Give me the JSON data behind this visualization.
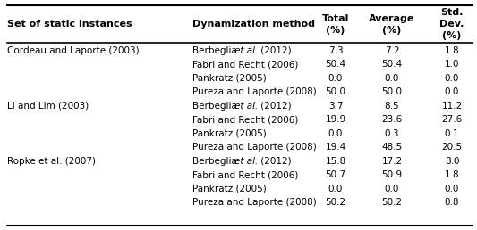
{
  "col_headers": [
    [
      "Set of static instances"
    ],
    [
      "Dynamization method"
    ],
    [
      "Total",
      "(%)"
    ],
    [
      "Average",
      "(%)"
    ],
    [
      "Std.",
      "Dev.",
      "(%)"
    ]
  ],
  "groups": [
    {
      "group_label": "Cordeau and Laporte (2003)",
      "rows": [
        {
          "method_pre": "Berbeglia ",
          "method_italic": "et al.",
          "method_post": " (2012)",
          "total": "7.3",
          "average": "7.2",
          "std": "1.8"
        },
        {
          "method_pre": "Fabri and Recht (2006)",
          "method_italic": "",
          "method_post": "",
          "total": "50.4",
          "average": "50.4",
          "std": "1.0"
        },
        {
          "method_pre": "Pankratz (2005)",
          "method_italic": "",
          "method_post": "",
          "total": "0.0",
          "average": "0.0",
          "std": "0.0"
        },
        {
          "method_pre": "Pureza and Laporte (2008)",
          "method_italic": "",
          "method_post": "",
          "total": "50.0",
          "average": "50.0",
          "std": "0.0"
        }
      ]
    },
    {
      "group_label": "Li and Lim (2003)",
      "rows": [
        {
          "method_pre": "Berbeglia ",
          "method_italic": "et al.",
          "method_post": " (2012)",
          "total": "3.7",
          "average": "8.5",
          "std": "11.2"
        },
        {
          "method_pre": "Fabri and Recht (2006)",
          "method_italic": "",
          "method_post": "",
          "total": "19.9",
          "average": "23.6",
          "std": "27.6"
        },
        {
          "method_pre": "Pankratz (2005)",
          "method_italic": "",
          "method_post": "",
          "total": "0.0",
          "average": "0.3",
          "std": "0.1"
        },
        {
          "method_pre": "Pureza and Laporte (2008)",
          "method_italic": "",
          "method_post": "",
          "total": "19.4",
          "average": "48.5",
          "std": "20.5"
        }
      ]
    },
    {
      "group_label": "Ropke et al. (2007)",
      "rows": [
        {
          "method_pre": "Berbeglia ",
          "method_italic": "et al.",
          "method_post": " (2012)",
          "total": "15.8",
          "average": "17.2",
          "std": "8.0"
        },
        {
          "method_pre": "Fabri and Recht (2006)",
          "method_italic": "",
          "method_post": "",
          "total": "50.7",
          "average": "50.9",
          "std": "1.8"
        },
        {
          "method_pre": "Pankratz (2005)",
          "method_italic": "",
          "method_post": "",
          "total": "0.0",
          "average": "0.0",
          "std": "0.0"
        },
        {
          "method_pre": "Pureza and Laporte (2008)",
          "method_italic": "",
          "method_post": "",
          "total": "50.2",
          "average": "50.2",
          "std": "0.8"
        }
      ]
    }
  ],
  "bg_color": "#ffffff",
  "text_color": "#000000",
  "header_fontsize": 8.0,
  "cell_fontsize": 7.5,
  "group_label_fontsize": 7.5
}
